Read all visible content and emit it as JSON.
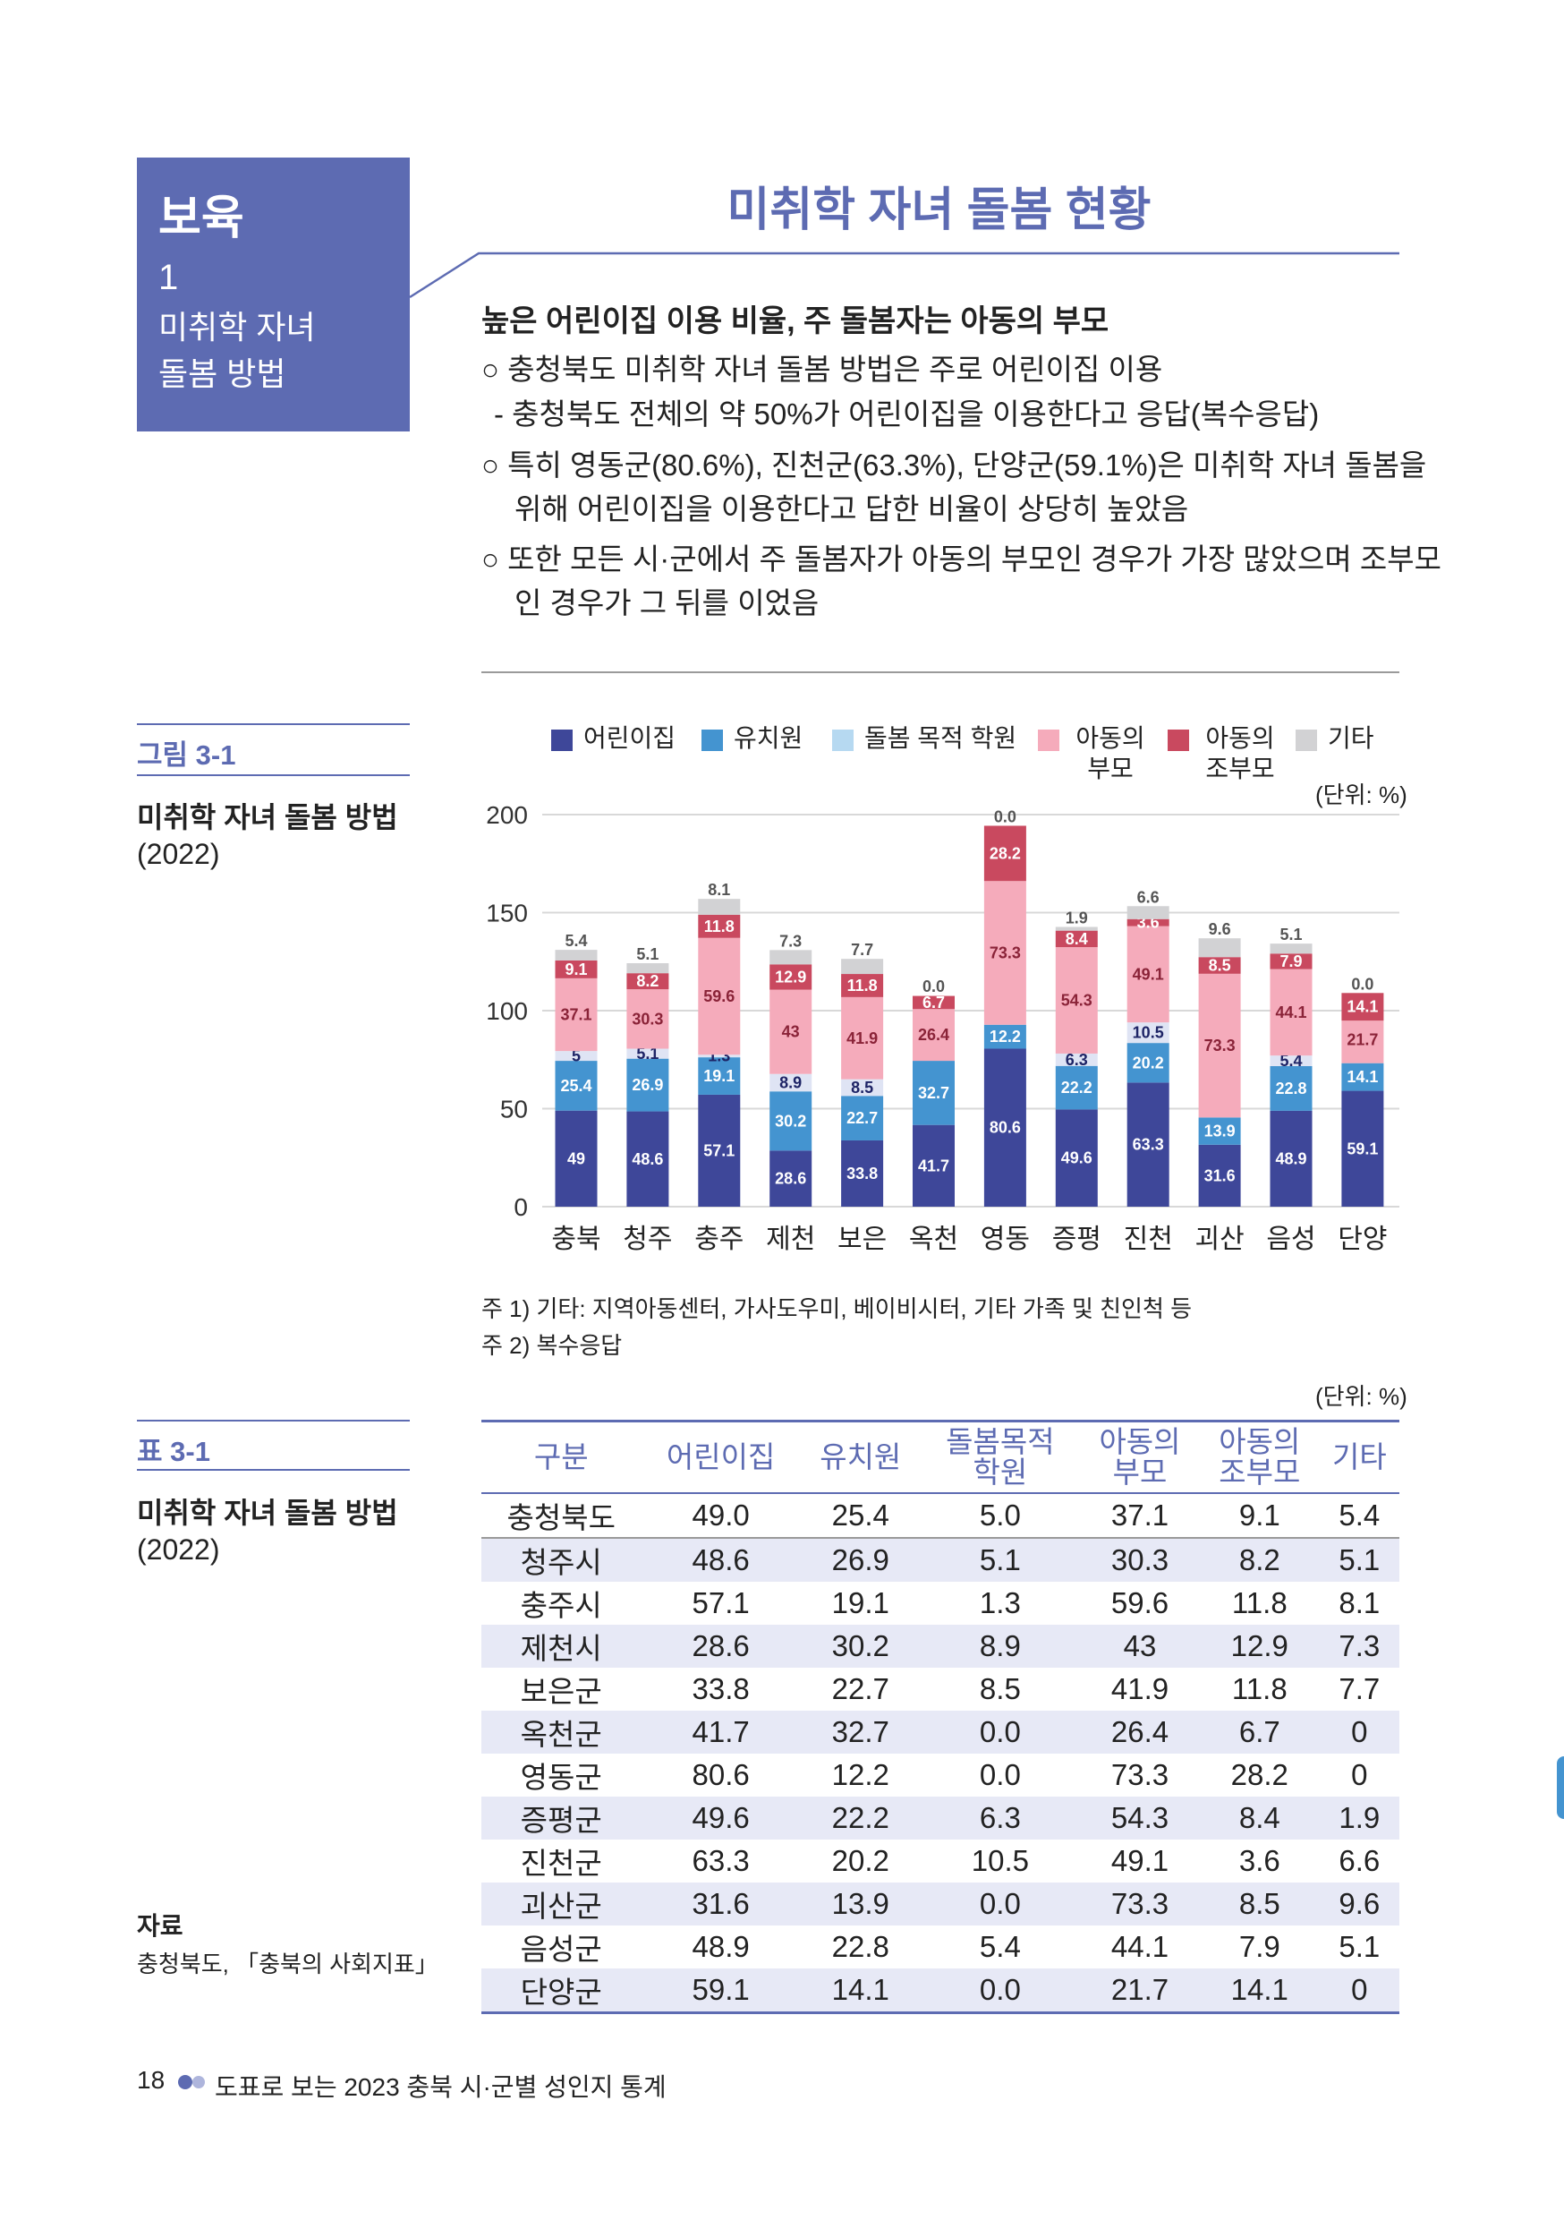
{
  "section": {
    "category": "보육",
    "number": "1",
    "name_line1": "미취학 자녀",
    "name_line2": "돌봄 방법"
  },
  "page_title": "미취학 자녀 돌봄 현황",
  "summary": {
    "heading": "높은 어린이집 이용 비율, 주 돌봄자는 아동의 부모",
    "lines": [
      "○ 충청북도 미취학 자녀 돌봄 방법은 주로 어린이집 이용",
      "- 충청북도 전체의 약 50%가 어린이집을 이용한다고 응답(복수응답)",
      "○ 특히 영동군(80.6%), 진천군(63.3%), 단양군(59.1%)은 미취학 자녀 돌봄을",
      "위해 어린이집을 이용한다고 답한 비율이 상당히 높았음",
      "○ 또한 모든 시·군에서 주 돌봄자가 아동의 부모인 경우가 가장 많았으며 조부모",
      "인 경우가 그 뒤를 이었음"
    ]
  },
  "figure": {
    "label": "그림 3-1",
    "title": "미취학 자녀 돌봄 방법",
    "year": "(2022)",
    "unit": "(단위: %)",
    "notes": [
      "주 1) 기타: 지역아동센터, 가사도우미, 베이비시터, 기타 가족 및 친인척 등",
      "주 2) 복수응답"
    ]
  },
  "chart_data": {
    "type": "bar",
    "stacked": true,
    "categories": [
      "충북",
      "청주",
      "충주",
      "제천",
      "보은",
      "옥천",
      "영동",
      "증평",
      "진천",
      "괴산",
      "음성",
      "단양"
    ],
    "ylim": [
      0,
      200
    ],
    "yticks": [
      0,
      50,
      100,
      150,
      200
    ],
    "grid": true,
    "legend": "top",
    "series": [
      {
        "name": "어린이집",
        "color": "#3e4799",
        "values": [
          49,
          48.6,
          57.1,
          28.6,
          33.8,
          41.7,
          80.6,
          49.6,
          63.3,
          31.6,
          48.9,
          59.1
        ]
      },
      {
        "name": "유치원",
        "color": "#4494d0",
        "values": [
          25.4,
          26.9,
          19.1,
          30.2,
          22.7,
          32.7,
          12.2,
          22.2,
          20.2,
          13.9,
          22.8,
          14.1
        ]
      },
      {
        "name": "돌봄 목적 학원",
        "color": "#dfe4f4",
        "legend_color": "#b6d9f1",
        "values": [
          5,
          5.1,
          1.3,
          8.9,
          8.5,
          0,
          0,
          6.3,
          10.5,
          0,
          5.4,
          0
        ]
      },
      {
        "name": "아동의 부모",
        "color": "#f5abbb",
        "values": [
          37.1,
          30.3,
          59.6,
          43,
          41.9,
          26.4,
          73.3,
          54.3,
          49.1,
          73.3,
          44.1,
          21.7
        ]
      },
      {
        "name": "아동의 조부모",
        "color": "#c9495f",
        "values": [
          9.1,
          8.2,
          11.8,
          12.9,
          11.8,
          6.7,
          28.2,
          8.4,
          3.6,
          8.5,
          7.9,
          14.1
        ]
      },
      {
        "name": "기타",
        "color": "#d2d2d4",
        "values": [
          5.4,
          5.1,
          8.1,
          7.3,
          7.7,
          0,
          0,
          1.9,
          6.6,
          9.6,
          5.1,
          0
        ]
      }
    ]
  },
  "table_section": {
    "label": "표 3-1",
    "title": "미취학 자녀 돌봄 방법",
    "year": "(2022)",
    "unit": "(단위: %)",
    "source_label": "자료",
    "source": "충청북도, 「충북의 사회지표」"
  },
  "table": {
    "headers": [
      "구분",
      "어린이집",
      "유치원",
      "돌봄목적\n학원",
      "아동의\n부모",
      "아동의\n조부모",
      "기타"
    ],
    "rows": [
      [
        "충청북도",
        "49.0",
        "25.4",
        "5.0",
        "37.1",
        "9.1",
        "5.4"
      ],
      [
        "청주시",
        "48.6",
        "26.9",
        "5.1",
        "30.3",
        "8.2",
        "5.1"
      ],
      [
        "충주시",
        "57.1",
        "19.1",
        "1.3",
        "59.6",
        "11.8",
        "8.1"
      ],
      [
        "제천시",
        "28.6",
        "30.2",
        "8.9",
        "43",
        "12.9",
        "7.3"
      ],
      [
        "보은군",
        "33.8",
        "22.7",
        "8.5",
        "41.9",
        "11.8",
        "7.7"
      ],
      [
        "옥천군",
        "41.7",
        "32.7",
        "0.0",
        "26.4",
        "6.7",
        "0"
      ],
      [
        "영동군",
        "80.6",
        "12.2",
        "0.0",
        "73.3",
        "28.2",
        "0"
      ],
      [
        "증평군",
        "49.6",
        "22.2",
        "6.3",
        "54.3",
        "8.4",
        "1.9"
      ],
      [
        "진천군",
        "63.3",
        "20.2",
        "10.5",
        "49.1",
        "3.6",
        "6.6"
      ],
      [
        "괴산군",
        "31.6",
        "13.9",
        "0.0",
        "73.3",
        "8.5",
        "9.6"
      ],
      [
        "음성군",
        "48.9",
        "22.8",
        "5.4",
        "44.1",
        "7.9",
        "5.1"
      ],
      [
        "단양군",
        "59.1",
        "14.1",
        "0.0",
        "21.7",
        "14.1",
        "0"
      ]
    ]
  },
  "footer": {
    "page_number": "18",
    "book_title": "도표로 보는 2023 충북 시·군별 성인지 통계"
  }
}
